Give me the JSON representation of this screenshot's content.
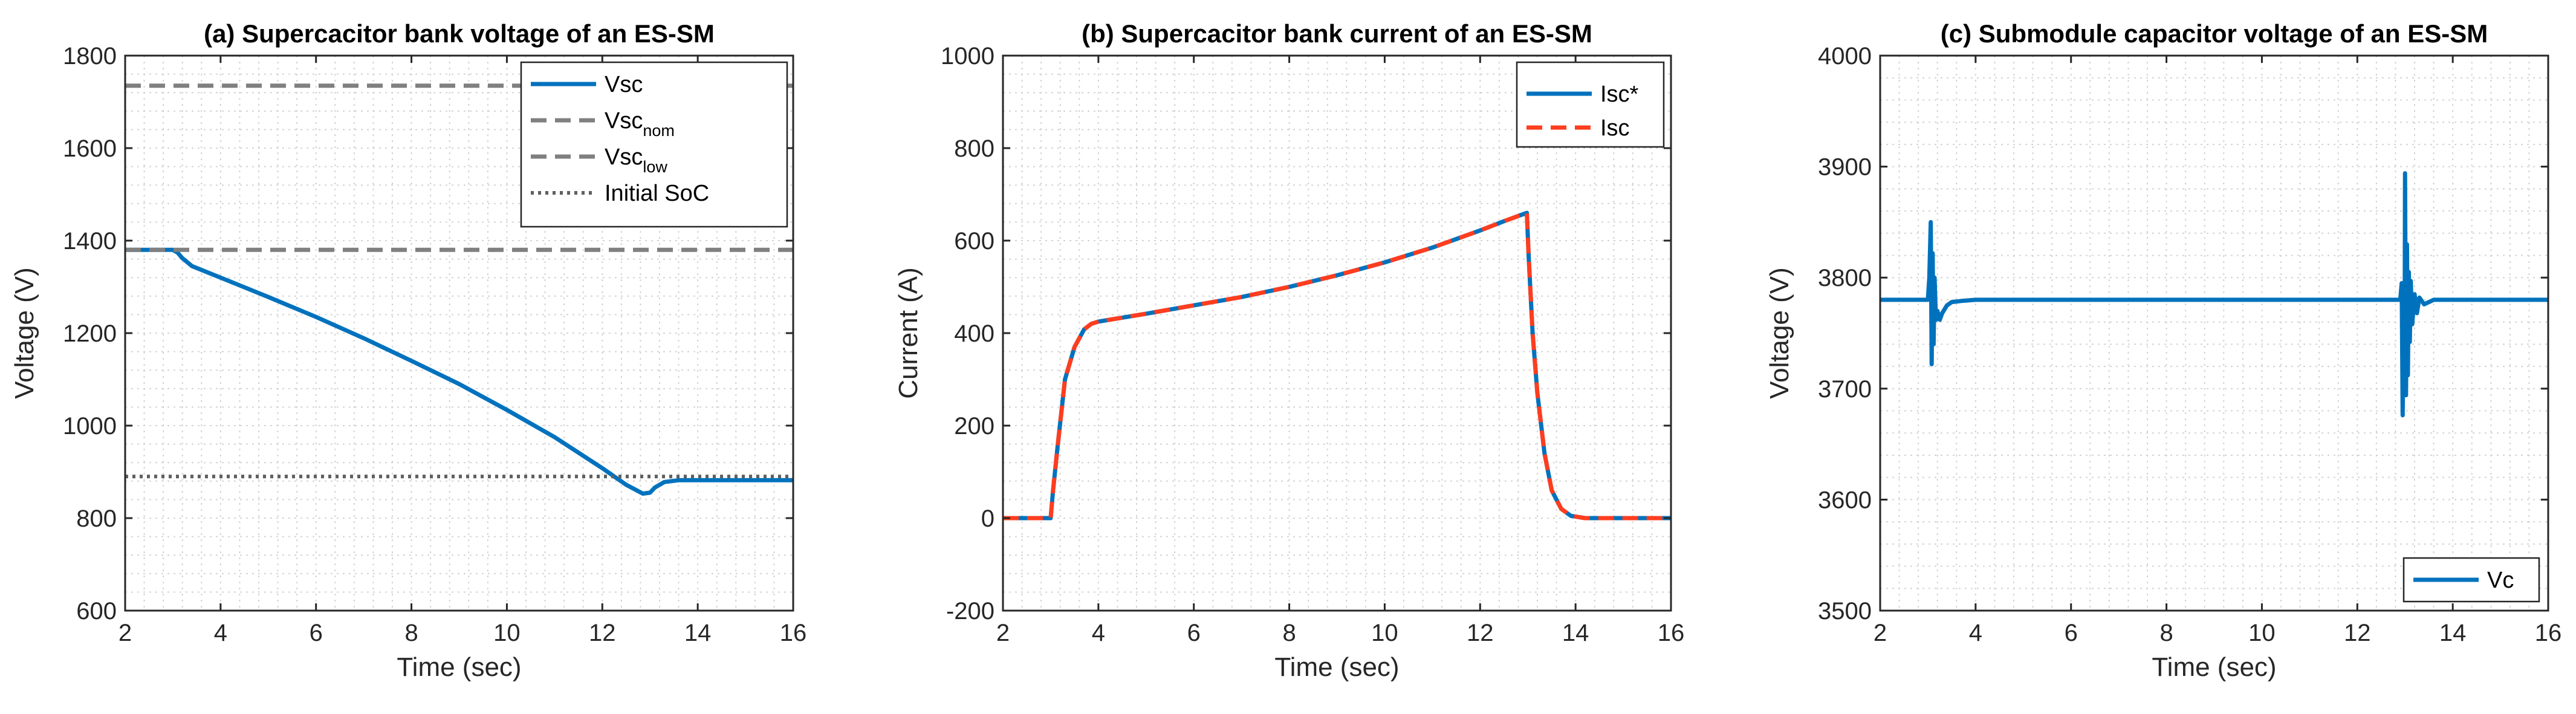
{
  "chart_data": [
    {
      "type": "line",
      "title": "(a) Supercacitor bank voltage of an ES-SM",
      "xlabel": "Time (sec)",
      "ylabel": "Voltage (V)",
      "xlim": [
        2,
        16
      ],
      "ylim": [
        600,
        1800
      ],
      "xticks": [
        "2",
        "4",
        "6",
        "8",
        "10",
        "12",
        "14",
        "16"
      ],
      "yticks": [
        "600",
        "800",
        "1000",
        "1200",
        "1400",
        "1600",
        "1800"
      ],
      "grid": "minor dotted",
      "legend_position": "top-right",
      "legend": [
        {
          "text": "Vsc",
          "sub": ""
        },
        {
          "text": "Vsc",
          "sub": "nom"
        },
        {
          "text": "Vsc",
          "sub": "low"
        },
        {
          "text": "Initial SoC",
          "sub": ""
        }
      ],
      "series": [
        {
          "name": "Vsc",
          "color": "#0072BD",
          "style": "solid",
          "x": [
            2,
            3,
            3.1,
            3.2,
            3.4,
            4,
            5,
            6,
            7,
            8,
            9,
            10,
            11,
            12,
            12.5,
            12.85,
            13,
            13.1,
            13.3,
            13.6,
            14,
            16
          ],
          "y": [
            1380,
            1380,
            1374,
            1362,
            1345,
            1320,
            1278,
            1235,
            1189,
            1140,
            1090,
            1034,
            975,
            908,
            872,
            853,
            855,
            866,
            878,
            882,
            882,
            882
          ]
        },
        {
          "name": "Vsc_nom",
          "color": "#808080",
          "style": "dashed",
          "x": [
            2,
            16
          ],
          "y": [
            1735,
            1735
          ]
        },
        {
          "name": "Vsc_low",
          "color": "#808080",
          "style": "dashed",
          "x": [
            2,
            16
          ],
          "y": [
            1380,
            1380
          ]
        },
        {
          "name": "Initial SoC",
          "color": "#606060",
          "style": "dotted",
          "x": [
            2,
            16
          ],
          "y": [
            890,
            890
          ]
        }
      ]
    },
    {
      "type": "line",
      "title": "(b) Supercacitor bank current of an ES-SM",
      "xlabel": "Time (sec)",
      "ylabel": "Current (A)",
      "xlim": [
        2,
        16
      ],
      "ylim": [
        -200,
        1000
      ],
      "xticks": [
        "2",
        "4",
        "6",
        "8",
        "10",
        "12",
        "14",
        "16"
      ],
      "yticks": [
        "-200",
        "0",
        "200",
        "400",
        "600",
        "800",
        "1000"
      ],
      "grid": "minor dotted",
      "legend_position": "top-right",
      "legend": [
        {
          "text": "Isc*",
          "sub": ""
        },
        {
          "text": "Isc",
          "sub": ""
        }
      ],
      "series": [
        {
          "name": "Isc*",
          "color": "#0072BD",
          "style": "solid",
          "x": [
            2,
            3,
            3.05,
            3.15,
            3.3,
            3.5,
            3.7,
            3.85,
            4,
            5,
            6,
            7,
            8,
            9,
            10,
            11,
            12,
            12.5,
            12.98,
            13.02,
            13.1,
            13.2,
            13.35,
            13.5,
            13.7,
            13.9,
            14.2,
            14.5,
            16
          ],
          "y": [
            0,
            0,
            60,
            160,
            300,
            370,
            408,
            420,
            425,
            442,
            460,
            478,
            500,
            525,
            553,
            585,
            622,
            642,
            660,
            560,
            400,
            270,
            140,
            60,
            20,
            5,
            0,
            0,
            0
          ]
        },
        {
          "name": "Isc",
          "color": "#FF3D1F",
          "style": "dashed",
          "x": [
            2,
            3,
            3.05,
            3.15,
            3.3,
            3.5,
            3.7,
            3.85,
            4,
            5,
            6,
            7,
            8,
            9,
            10,
            11,
            12,
            12.5,
            12.98,
            13.02,
            13.1,
            13.2,
            13.35,
            13.5,
            13.7,
            13.9,
            14.2,
            14.5,
            16
          ],
          "y": [
            0,
            0,
            60,
            160,
            300,
            370,
            408,
            420,
            425,
            442,
            460,
            478,
            500,
            525,
            553,
            585,
            622,
            642,
            660,
            560,
            400,
            270,
            140,
            60,
            20,
            5,
            0,
            0,
            0
          ]
        }
      ]
    },
    {
      "type": "line",
      "title": "(c) Submodule capacitor voltage of an ES-SM",
      "xlabel": "Time (sec)",
      "ylabel": "Voltage (V)",
      "xlim": [
        2,
        16
      ],
      "ylim": [
        3500,
        4000
      ],
      "xticks": [
        "2",
        "4",
        "6",
        "8",
        "10",
        "12",
        "14",
        "16"
      ],
      "yticks": [
        "3500",
        "3600",
        "3700",
        "3800",
        "3900",
        "4000"
      ],
      "grid": "minor dotted",
      "legend_position": "bottom-right",
      "legend": [
        {
          "text": "Vc",
          "sub": ""
        }
      ],
      "series": [
        {
          "name": "Vc",
          "color": "#0072BD",
          "style": "solid",
          "x": [
            2,
            3.0,
            3.03,
            3.06,
            3.08,
            3.1,
            3.12,
            3.14,
            3.17,
            3.2,
            3.25,
            3.3,
            3.4,
            3.5,
            3.7,
            4,
            12.9,
            12.93,
            12.95,
            12.97,
            12.99,
            13.0,
            13.02,
            13.04,
            13.06,
            13.08,
            13.1,
            13.12,
            13.15,
            13.2,
            13.25,
            13.3,
            13.4,
            13.6,
            14,
            16
          ],
          "y": [
            3780,
            3780,
            3800,
            3850,
            3722,
            3822,
            3740,
            3800,
            3762,
            3770,
            3762,
            3768,
            3775,
            3778,
            3779,
            3780,
            3780,
            3795,
            3676,
            3790,
            3700,
            3894,
            3694,
            3830,
            3712,
            3805,
            3742,
            3797,
            3758,
            3785,
            3768,
            3782,
            3776,
            3780,
            3780,
            3780
          ]
        }
      ]
    }
  ]
}
